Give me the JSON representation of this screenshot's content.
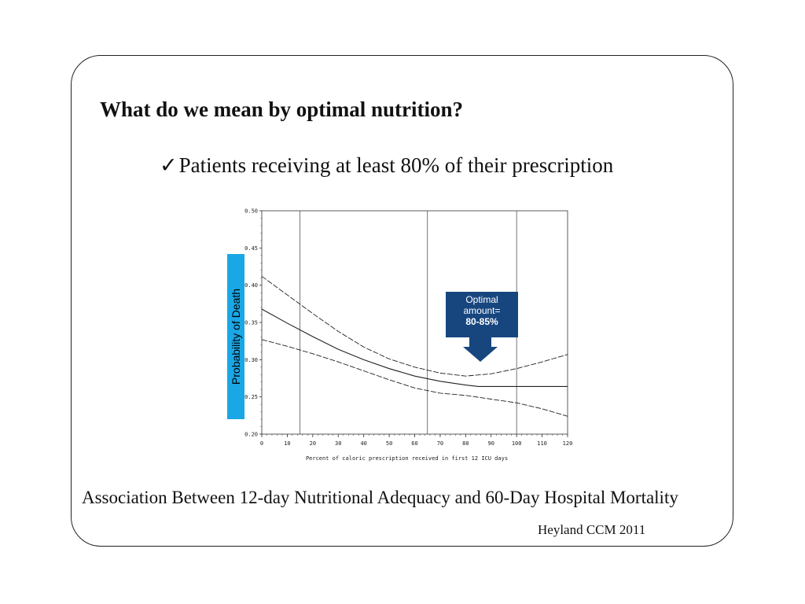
{
  "slide": {
    "title": "What do we mean by optimal nutrition?",
    "bullet": "Patients receiving at least 80% of their prescription",
    "bullet_icon": "checkmark-icon",
    "caption": "Association Between 12-day Nutritional Adequacy and 60-Day Hospital Mortality",
    "citation": "Heyland CCM 2011"
  },
  "chart_data": {
    "type": "line",
    "xlabel": "Percent of caloric prescription received in first 12 ICU days",
    "ylabel": "Probability of Death",
    "xlim": [
      0,
      120
    ],
    "ylim": [
      0.2,
      0.5
    ],
    "xticks": [
      0,
      10,
      20,
      30,
      40,
      50,
      60,
      70,
      80,
      90,
      100,
      110,
      120
    ],
    "yticks": [
      0.2,
      0.25,
      0.3,
      0.35,
      0.4,
      0.45,
      0.5
    ],
    "ytick_labels": [
      "0.20",
      "0.25",
      "0.30",
      "0.35",
      "0.40",
      "0.45",
      "0.50"
    ],
    "reference_lines_x": [
      15,
      65,
      100
    ],
    "grid": false,
    "ylabel_box_color": "#1aa7e6",
    "series": [
      {
        "style": "dashed",
        "x": [
          0,
          10,
          20,
          30,
          40,
          50,
          60,
          70,
          80,
          90,
          100,
          110,
          120
        ],
        "y": [
          0.412,
          0.387,
          0.362,
          0.338,
          0.317,
          0.301,
          0.29,
          0.282,
          0.278,
          0.281,
          0.288,
          0.297,
          0.307
        ]
      },
      {
        "style": "solid",
        "x": [
          0,
          10,
          20,
          30,
          40,
          50,
          60,
          70,
          80,
          85,
          90,
          100,
          110,
          120
        ],
        "y": [
          0.368,
          0.349,
          0.331,
          0.314,
          0.3,
          0.288,
          0.278,
          0.271,
          0.266,
          0.264,
          0.264,
          0.264,
          0.264,
          0.264
        ]
      },
      {
        "style": "dashed",
        "x": [
          0,
          10,
          20,
          30,
          40,
          50,
          60,
          70,
          80,
          90,
          100,
          110,
          120
        ],
        "y": [
          0.327,
          0.318,
          0.308,
          0.297,
          0.285,
          0.273,
          0.262,
          0.255,
          0.252,
          0.247,
          0.242,
          0.234,
          0.224
        ]
      }
    ],
    "annotation": {
      "text_lines": [
        "Optimal",
        "amount=",
        "80-85%"
      ],
      "color": "#17467f"
    }
  }
}
